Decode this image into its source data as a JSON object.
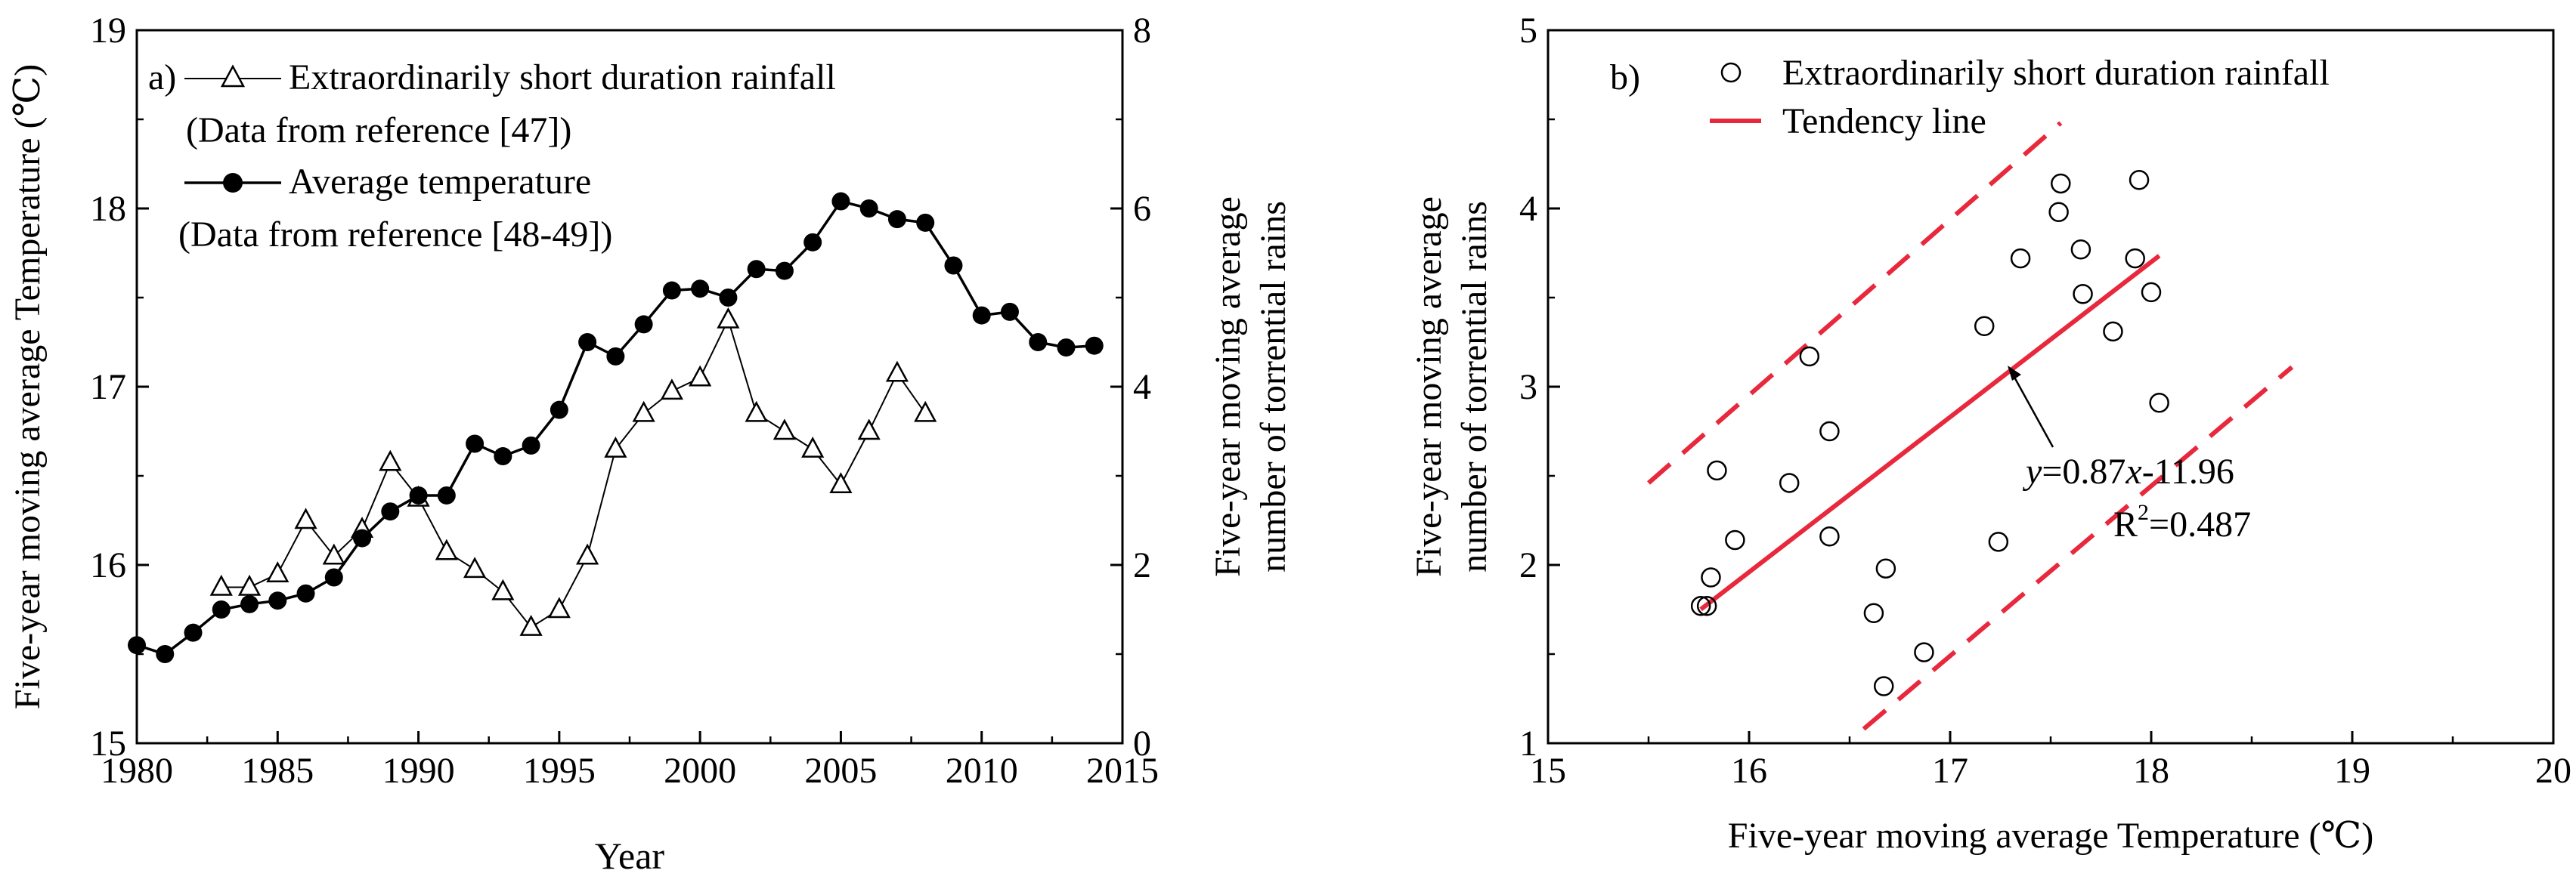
{
  "colors": {
    "axis": "#000000",
    "series_line": "#000000",
    "trend": "#e8283c"
  },
  "chart_data": [
    {
      "id": "a",
      "type": "line",
      "panel_label": "a)",
      "xlabel": "Year",
      "ylabel_left": "Five-year moving average Temperature (℃)",
      "ylabel_right_line1": "Five-year moving average",
      "ylabel_right_line2": "number of torrential rains",
      "xlim": [
        1980,
        2015
      ],
      "ylim_left": [
        15,
        19
      ],
      "ylim_right": [
        0,
        8
      ],
      "xticks": [
        1980,
        1985,
        1990,
        1995,
        2000,
        2005,
        2010,
        2015
      ],
      "xtick_labels": [
        "1980",
        "1985",
        "1990",
        "1995",
        "2000",
        "2005",
        "2010",
        "2015"
      ],
      "yticks_left": [
        15,
        16,
        17,
        18,
        19
      ],
      "ytick_labels_left": [
        "15",
        "16",
        "17",
        "18",
        "19"
      ],
      "yticks_right": [
        0,
        2,
        4,
        6,
        8
      ],
      "ytick_labels_right": [
        "0",
        "2",
        "4",
        "6",
        "8"
      ],
      "legend": [
        {
          "label": "Extraordinarily short duration rainfall",
          "note": "(Data from reference [47])",
          "marker": "open-triangle"
        },
        {
          "label": "Average temperature",
          "note": "(Data from reference [48-49])",
          "marker": "filled-circle"
        }
      ],
      "series": [
        {
          "name": "Extraordinarily short duration rainfall",
          "axis": "right",
          "marker": "open-triangle",
          "x": [
            1983,
            1984,
            1985,
            1986,
            1987,
            1988,
            1989,
            1990,
            1991,
            1992,
            1993,
            1994,
            1995,
            1996,
            1997,
            1998,
            1999,
            2000,
            2001,
            2002,
            2003,
            2004,
            2005,
            2006,
            2007,
            2008
          ],
          "y": [
            1.75,
            1.75,
            1.9,
            2.5,
            2.1,
            2.4,
            3.15,
            2.75,
            2.15,
            1.95,
            1.7,
            1.3,
            1.5,
            2.1,
            3.3,
            3.7,
            3.95,
            4.1,
            4.75,
            3.7,
            3.5,
            3.3,
            2.9,
            3.5,
            4.15,
            3.7
          ]
        },
        {
          "name": "Average temperature",
          "axis": "left",
          "marker": "filled-circle",
          "x": [
            1980,
            1981,
            1982,
            1983,
            1984,
            1985,
            1986,
            1987,
            1988,
            1989,
            1990,
            1991,
            1992,
            1993,
            1994,
            1995,
            1996,
            1997,
            1998,
            1999,
            2000,
            2001,
            2002,
            2003,
            2004,
            2005,
            2006,
            2007,
            2008,
            2009,
            2010,
            2011,
            2012,
            2013,
            2014
          ],
          "y": [
            15.55,
            15.5,
            15.62,
            15.75,
            15.78,
            15.8,
            15.84,
            15.93,
            16.15,
            16.3,
            16.39,
            16.39,
            16.68,
            16.61,
            16.67,
            16.87,
            17.25,
            17.17,
            17.35,
            17.54,
            17.55,
            17.5,
            17.66,
            17.65,
            17.81,
            18.04,
            18.0,
            17.94,
            17.92,
            17.68,
            17.4,
            17.42,
            17.25,
            17.22,
            17.23
          ]
        }
      ]
    },
    {
      "id": "b",
      "type": "scatter",
      "panel_label": "b)",
      "xlabel": "Five-year moving average Temperature (℃)",
      "ylabel_line1": "Five-year moving average",
      "ylabel_line2": "number of torrential rains",
      "xlim": [
        15,
        20
      ],
      "ylim": [
        1,
        5
      ],
      "xticks": [
        15,
        16,
        17,
        18,
        19,
        20
      ],
      "xtick_labels": [
        "15",
        "16",
        "17",
        "18",
        "19",
        "20"
      ],
      "yticks": [
        1,
        2,
        3,
        4,
        5
      ],
      "ytick_labels": [
        "1",
        "2",
        "3",
        "4",
        "5"
      ],
      "legend": [
        {
          "label": "Extraordinarily short duration rainfall",
          "marker": "open-circle"
        },
        {
          "label": "Tendency line",
          "marker": "red-line"
        }
      ],
      "points": {
        "x": [
          15.76,
          15.79,
          15.81,
          15.84,
          15.93,
          16.2,
          16.3,
          16.4,
          16.4,
          16.62,
          16.68,
          16.67,
          16.87,
          17.17,
          17.24,
          17.35,
          17.54,
          17.55,
          17.66,
          17.65,
          17.81,
          17.92,
          17.94,
          18.0,
          18.04
        ],
        "y": [
          1.77,
          1.77,
          1.93,
          2.53,
          2.14,
          2.46,
          3.17,
          2.75,
          2.16,
          1.73,
          1.98,
          1.32,
          1.51,
          3.34,
          2.13,
          3.72,
          3.98,
          4.14,
          3.52,
          3.77,
          3.31,
          3.72,
          4.16,
          3.53,
          2.91
        ]
      },
      "trend": {
        "slope": 0.87,
        "intercept": -11.96,
        "x_range": [
          15.76,
          18.04
        ]
      },
      "bands": [
        {
          "x_range": [
            15.5,
            17.55
          ],
          "y_range": [
            2.46,
            4.48
          ]
        },
        {
          "x_range": [
            16.57,
            18.7
          ],
          "y_range": [
            1.08,
            3.11
          ]
        }
      ],
      "equation_y": "y",
      "equation_mid": "=0.87",
      "equation_x": "x",
      "equation_end": "-11.96",
      "r2_prefix": "R",
      "r2_sup": "2",
      "r2_value": "=0.487"
    }
  ]
}
